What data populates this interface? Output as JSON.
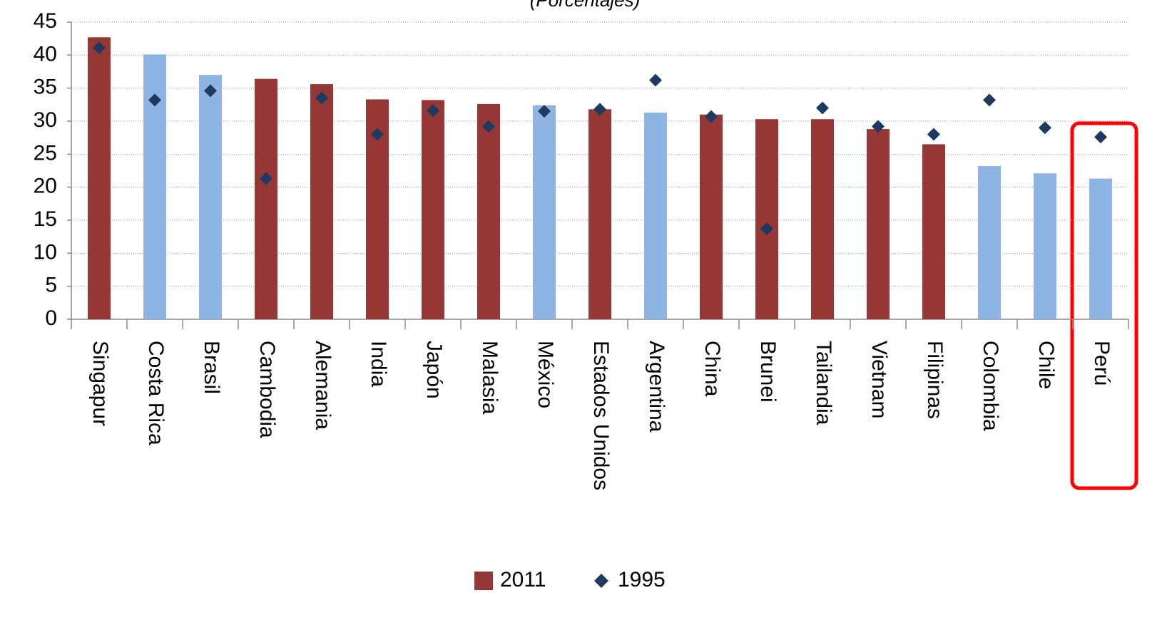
{
  "chart_data": {
    "type": "bar",
    "subtitle": "(Porcentajes)",
    "categories": [
      "Singapur",
      "Costa Rica",
      "Brasil",
      "Cambodia",
      "Alemania",
      "India",
      "Japón",
      "Malasia",
      "México",
      "Estados Unidos",
      "Argentina",
      "China",
      "Brunei",
      "Tailandia",
      "Vietnam",
      "Filipinas",
      "Colombia",
      "Chile",
      "Perú"
    ],
    "series": [
      {
        "name": "2011",
        "kind": "bar",
        "color": "#953735",
        "colors": [
          "#953735",
          "#8eb4e3",
          "#8eb4e3",
          "#953735",
          "#953735",
          "#953735",
          "#953735",
          "#953735",
          "#8eb4e3",
          "#953735",
          "#8eb4e3",
          "#953735",
          "#953735",
          "#953735",
          "#953735",
          "#953735",
          "#8eb4e3",
          "#8eb4e3",
          "#8eb4e3"
        ],
        "values": [
          42.7,
          40.1,
          37.0,
          36.4,
          35.6,
          33.3,
          33.2,
          32.6,
          32.4,
          31.8,
          31.3,
          31.0,
          30.3,
          30.3,
          28.8,
          26.5,
          23.2,
          22.1,
          21.3
        ]
      },
      {
        "name": "1995",
        "kind": "marker",
        "color": "#1f3a5f",
        "values": [
          41.1,
          33.2,
          34.6,
          21.3,
          33.5,
          28.0,
          31.6,
          29.2,
          31.5,
          31.8,
          36.2,
          30.7,
          13.7,
          32.0,
          29.2,
          28.0,
          33.2,
          29.0,
          27.6
        ]
      }
    ],
    "ylim": [
      0,
      45
    ],
    "yticks": [
      0,
      5,
      10,
      15,
      20,
      25,
      30,
      35,
      40,
      45
    ],
    "grid": true,
    "legend": "bottom"
  }
}
